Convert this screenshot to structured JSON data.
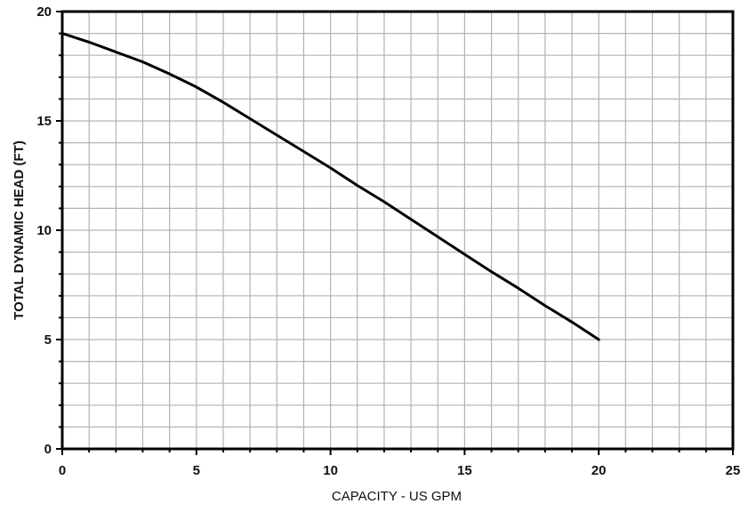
{
  "chart_data": {
    "type": "line",
    "xlabel": "CAPACITY - US GPM",
    "ylabel": "TOTAL DYNAMIC HEAD (FT)",
    "xlim": [
      0,
      25
    ],
    "ylim": [
      0,
      20
    ],
    "x_ticks": [
      0,
      5,
      10,
      15,
      20,
      25
    ],
    "y_ticks": [
      0,
      5,
      10,
      15,
      20
    ],
    "x_tick_labels": [
      "0",
      "5",
      "10",
      "15",
      "20",
      "25"
    ],
    "y_tick_labels": [
      "0",
      "5",
      "10",
      "15",
      "20"
    ],
    "grid": true,
    "minor_grid_step_x": 1,
    "minor_grid_step_y": 1,
    "series": [
      {
        "x": [
          0,
          1,
          2,
          3,
          4,
          5,
          6,
          7,
          8,
          9,
          10,
          11,
          12,
          13,
          14,
          15,
          16,
          17,
          18,
          19,
          20
        ],
        "y": [
          19.0,
          18.6,
          18.15,
          17.7,
          17.15,
          16.55,
          15.85,
          15.1,
          14.35,
          13.6,
          12.85,
          12.05,
          11.3,
          10.5,
          9.7,
          8.9,
          8.1,
          7.35,
          6.55,
          5.8,
          5.0
        ],
        "color": "#000000"
      }
    ]
  }
}
